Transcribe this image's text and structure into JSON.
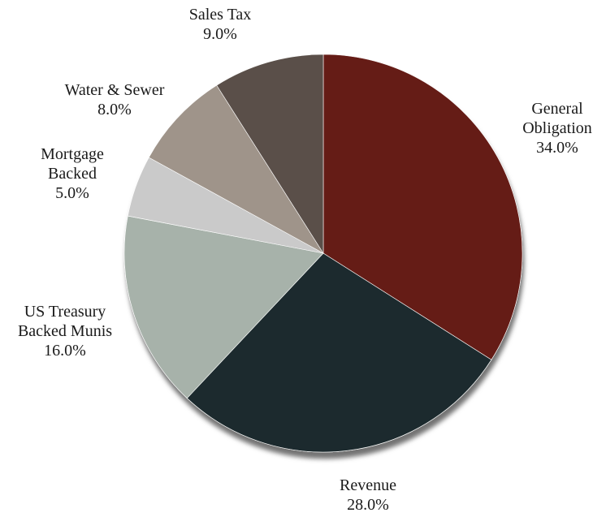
{
  "chart_data": {
    "type": "pie",
    "title": "",
    "slices": [
      {
        "label_lines": [
          "General",
          "Obligation"
        ],
        "value": 34.0,
        "value_label": "34.0%",
        "color": "#651a16"
      },
      {
        "label_lines": [
          "Revenue"
        ],
        "value": 28.0,
        "value_label": "28.0%",
        "color": "#1c2c2e"
      },
      {
        "label_lines": [
          "US Treasury",
          "Backed Munis"
        ],
        "value": 16.0,
        "value_label": "16.0%",
        "color": "#a7b2aa"
      },
      {
        "label_lines": [
          "Mortgage",
          "Backed"
        ],
        "value": 5.0,
        "value_label": "5.0%",
        "color": "#cacaca"
      },
      {
        "label_lines": [
          "Water & Sewer"
        ],
        "value": 8.0,
        "value_label": "8.0%",
        "color": "#9f948a"
      },
      {
        "label_lines": [
          "Sales Tax"
        ],
        "value": 9.0,
        "value_label": "9.0%",
        "color": "#5a5049"
      }
    ],
    "start_angle_deg": 0,
    "direction": "clockwise",
    "legend": "none",
    "labels_outside": true
  }
}
